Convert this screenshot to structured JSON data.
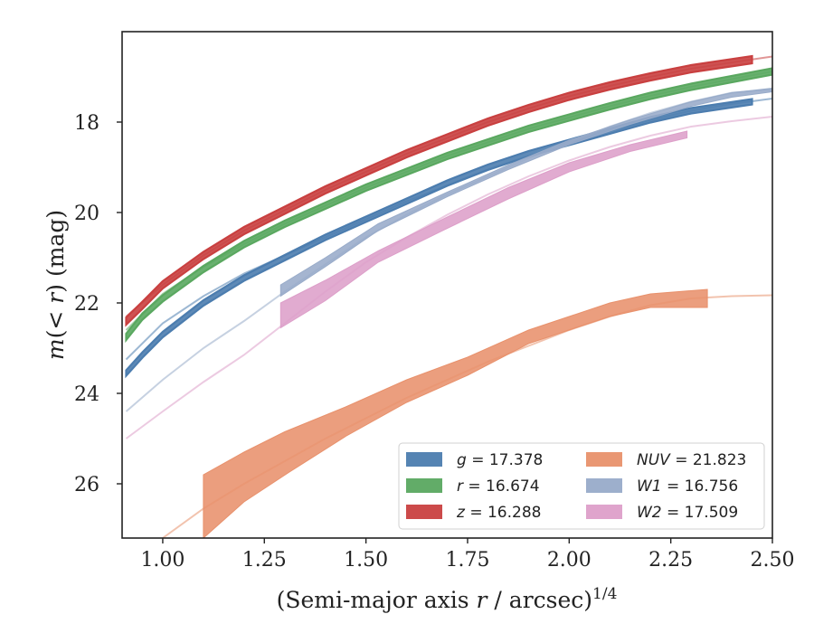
{
  "chart_data": {
    "type": "line",
    "xlabel": "(Semi-major axis r / arcsec)",
    "xlabel_parts": {
      "pre": "(Semi-major axis ",
      "var": "r",
      "post": " / arcsec)",
      "exp": "1/4"
    },
    "ylabel": "m(< r) (mag)",
    "ylabel_parts": {
      "var": "m",
      "mid": "(< ",
      "var2": "r",
      "post": ") (mag)"
    },
    "xlim": [
      0.9,
      2.5
    ],
    "ylim": [
      27.2,
      16.0
    ],
    "y_inverted": true,
    "xticks": [
      1.0,
      1.25,
      1.5,
      1.75,
      2.0,
      2.25,
      2.5
    ],
    "xtick_labels": [
      "1.00",
      "1.25",
      "1.50",
      "1.75",
      "2.00",
      "2.25",
      "2.50"
    ],
    "yticks": [
      18,
      20,
      22,
      24,
      26
    ],
    "ytick_labels": [
      "18",
      "20",
      "22",
      "24",
      "26"
    ],
    "grid": false,
    "legend_placement": "lower-right",
    "series": [
      {
        "name": "g = 17.378",
        "band": "g",
        "value": "17.378",
        "color": "#4c7daf",
        "fit": [
          [
            0.91,
            23.25
          ],
          [
            1.0,
            22.45
          ],
          [
            1.1,
            21.85
          ],
          [
            1.2,
            21.35
          ],
          [
            1.3,
            20.95
          ],
          [
            1.4,
            20.55
          ],
          [
            1.5,
            20.15
          ],
          [
            1.6,
            19.75
          ],
          [
            1.7,
            19.4
          ],
          [
            1.8,
            19.05
          ],
          [
            1.9,
            18.75
          ],
          [
            2.0,
            18.45
          ],
          [
            2.1,
            18.2
          ],
          [
            2.2,
            17.95
          ],
          [
            2.3,
            17.75
          ],
          [
            2.4,
            17.6
          ],
          [
            2.5,
            17.48
          ]
        ],
        "data": [
          [
            0.91,
            23.55
          ],
          [
            0.95,
            23.15
          ],
          [
            1.0,
            22.7
          ],
          [
            1.1,
            22.0
          ],
          [
            1.2,
            21.45
          ],
          [
            1.3,
            21.0
          ],
          [
            1.4,
            20.55
          ],
          [
            1.5,
            20.15
          ],
          [
            1.6,
            19.75
          ],
          [
            1.7,
            19.35
          ],
          [
            1.8,
            19.0
          ],
          [
            1.9,
            18.7
          ],
          [
            2.0,
            18.45
          ],
          [
            2.1,
            18.2
          ],
          [
            2.2,
            17.95
          ],
          [
            2.3,
            17.75
          ],
          [
            2.45,
            17.55
          ]
        ],
        "err": 0.06
      },
      {
        "name": "r = 16.674",
        "band": "r",
        "value": "16.674",
        "color": "#5aa860",
        "fit": [
          [
            0.91,
            22.6
          ],
          [
            1.0,
            21.8
          ],
          [
            1.1,
            21.2
          ],
          [
            1.2,
            20.7
          ],
          [
            1.3,
            20.25
          ],
          [
            1.4,
            19.85
          ],
          [
            1.5,
            19.45
          ],
          [
            1.6,
            19.1
          ],
          [
            1.7,
            18.75
          ],
          [
            1.8,
            18.45
          ],
          [
            1.9,
            18.15
          ],
          [
            2.0,
            17.9
          ],
          [
            2.1,
            17.65
          ],
          [
            2.2,
            17.42
          ],
          [
            2.3,
            17.22
          ],
          [
            2.4,
            17.05
          ],
          [
            2.5,
            16.88
          ]
        ],
        "data": [
          [
            0.91,
            22.75
          ],
          [
            0.95,
            22.3
          ],
          [
            1.0,
            21.9
          ],
          [
            1.1,
            21.25
          ],
          [
            1.2,
            20.7
          ],
          [
            1.3,
            20.25
          ],
          [
            1.4,
            19.85
          ],
          [
            1.5,
            19.45
          ],
          [
            1.6,
            19.1
          ],
          [
            1.7,
            18.75
          ],
          [
            1.8,
            18.45
          ],
          [
            1.9,
            18.15
          ],
          [
            2.0,
            17.9
          ],
          [
            2.1,
            17.65
          ],
          [
            2.2,
            17.42
          ],
          [
            2.3,
            17.22
          ],
          [
            2.5,
            16.88
          ]
        ],
        "err": 0.07
      },
      {
        "name": "z = 16.288",
        "band": "z",
        "value": "16.288",
        "color": "#c94040",
        "fit": [
          [
            0.91,
            22.3
          ],
          [
            1.0,
            21.6
          ],
          [
            1.1,
            20.95
          ],
          [
            1.2,
            20.4
          ],
          [
            1.3,
            19.95
          ],
          [
            1.4,
            19.5
          ],
          [
            1.5,
            19.1
          ],
          [
            1.6,
            18.7
          ],
          [
            1.7,
            18.35
          ],
          [
            1.8,
            18.0
          ],
          [
            1.9,
            17.7
          ],
          [
            2.0,
            17.43
          ],
          [
            2.1,
            17.2
          ],
          [
            2.2,
            17.0
          ],
          [
            2.3,
            16.82
          ],
          [
            2.4,
            16.68
          ],
          [
            2.5,
            16.55
          ]
        ],
        "data": [
          [
            0.91,
            22.4
          ],
          [
            0.95,
            22.05
          ],
          [
            1.0,
            21.6
          ],
          [
            1.1,
            20.95
          ],
          [
            1.2,
            20.4
          ],
          [
            1.3,
            19.95
          ],
          [
            1.4,
            19.5
          ],
          [
            1.5,
            19.1
          ],
          [
            1.6,
            18.7
          ],
          [
            1.7,
            18.35
          ],
          [
            1.8,
            18.0
          ],
          [
            1.9,
            17.7
          ],
          [
            2.0,
            17.43
          ],
          [
            2.1,
            17.2
          ],
          [
            2.2,
            17.0
          ],
          [
            2.3,
            16.82
          ],
          [
            2.45,
            16.62
          ]
        ],
        "err": 0.08
      },
      {
        "name": "NUV = 21.823",
        "band": "NUV",
        "value": "21.823",
        "color": "#e8916c",
        "fit": [
          [
            1.0,
            27.2
          ],
          [
            1.1,
            26.55
          ],
          [
            1.2,
            26.0
          ],
          [
            1.3,
            25.5
          ],
          [
            1.4,
            25.0
          ],
          [
            1.5,
            24.55
          ],
          [
            1.6,
            24.1
          ],
          [
            1.7,
            23.7
          ],
          [
            1.8,
            23.3
          ],
          [
            1.9,
            22.95
          ],
          [
            2.0,
            22.6
          ],
          [
            2.1,
            22.3
          ],
          [
            2.2,
            22.05
          ],
          [
            2.3,
            21.9
          ],
          [
            2.4,
            21.85
          ],
          [
            2.5,
            21.83
          ]
        ],
        "band_upper": [
          [
            1.1,
            25.8
          ],
          [
            1.2,
            25.3
          ],
          [
            1.3,
            24.85
          ],
          [
            1.45,
            24.3
          ],
          [
            1.6,
            23.7
          ],
          [
            1.75,
            23.2
          ],
          [
            1.9,
            22.6
          ],
          [
            2.0,
            22.3
          ],
          [
            2.1,
            22.0
          ],
          [
            2.2,
            21.8
          ],
          [
            2.34,
            21.7
          ]
        ],
        "band_lower": [
          [
            1.1,
            27.2
          ],
          [
            1.2,
            26.4
          ],
          [
            1.31,
            25.75
          ],
          [
            1.45,
            24.95
          ],
          [
            1.6,
            24.2
          ],
          [
            1.75,
            23.6
          ],
          [
            1.9,
            22.9
          ],
          [
            2.0,
            22.6
          ],
          [
            2.1,
            22.3
          ],
          [
            2.2,
            22.1
          ],
          [
            2.34,
            22.1
          ]
        ]
      },
      {
        "name": "W1 = 16.756",
        "band": "W1",
        "value": "16.756",
        "color": "#98abc9",
        "fit": [
          [
            0.91,
            24.4
          ],
          [
            1.0,
            23.7
          ],
          [
            1.1,
            23.0
          ],
          [
            1.2,
            22.4
          ],
          [
            1.3,
            21.75
          ],
          [
            1.4,
            21.15
          ],
          [
            1.5,
            20.55
          ],
          [
            1.6,
            20.05
          ],
          [
            1.7,
            19.6
          ],
          [
            1.8,
            19.2
          ],
          [
            1.9,
            18.8
          ],
          [
            2.0,
            18.45
          ],
          [
            2.1,
            18.1
          ],
          [
            2.2,
            17.8
          ],
          [
            2.3,
            17.55
          ],
          [
            2.4,
            17.35
          ],
          [
            2.5,
            17.28
          ]
        ],
        "band_upper": [
          [
            1.29,
            21.6
          ],
          [
            1.4,
            21.0
          ],
          [
            1.53,
            20.25
          ],
          [
            1.7,
            19.55
          ],
          [
            1.85,
            18.95
          ],
          [
            2.0,
            18.4
          ],
          [
            2.15,
            17.95
          ],
          [
            2.3,
            17.55
          ],
          [
            2.4,
            17.35
          ],
          [
            2.5,
            17.25
          ]
        ],
        "band_lower": [
          [
            1.29,
            21.85
          ],
          [
            1.4,
            21.2
          ],
          [
            1.53,
            20.4
          ],
          [
            1.7,
            19.65
          ],
          [
            1.85,
            19.05
          ],
          [
            2.0,
            18.5
          ],
          [
            2.15,
            18.05
          ],
          [
            2.3,
            17.65
          ],
          [
            2.4,
            17.45
          ],
          [
            2.5,
            17.33
          ]
        ]
      },
      {
        "name": "W2 = 17.509",
        "band": "W2",
        "value": "17.509",
        "color": "#dd9fc9",
        "fit": [
          [
            0.91,
            25.0
          ],
          [
            1.0,
            24.4
          ],
          [
            1.1,
            23.75
          ],
          [
            1.2,
            23.15
          ],
          [
            1.3,
            22.45
          ],
          [
            1.4,
            21.75
          ],
          [
            1.5,
            21.1
          ],
          [
            1.6,
            20.55
          ],
          [
            1.7,
            20.05
          ],
          [
            1.8,
            19.6
          ],
          [
            1.9,
            19.2
          ],
          [
            2.0,
            18.85
          ],
          [
            2.1,
            18.55
          ],
          [
            2.2,
            18.3
          ],
          [
            2.3,
            18.1
          ],
          [
            2.4,
            17.98
          ],
          [
            2.5,
            17.88
          ]
        ],
        "band_upper": [
          [
            1.29,
            22.0
          ],
          [
            1.4,
            21.5
          ],
          [
            1.53,
            20.85
          ],
          [
            1.7,
            20.1
          ],
          [
            1.85,
            19.45
          ],
          [
            2.0,
            18.9
          ],
          [
            2.15,
            18.5
          ],
          [
            2.29,
            18.2
          ]
        ],
        "band_lower": [
          [
            1.29,
            22.55
          ],
          [
            1.4,
            21.95
          ],
          [
            1.53,
            21.1
          ],
          [
            1.7,
            20.35
          ],
          [
            1.85,
            19.7
          ],
          [
            2.0,
            19.1
          ],
          [
            2.15,
            18.65
          ],
          [
            2.29,
            18.35
          ]
        ]
      }
    ],
    "legend": {
      "left": [
        {
          "pre": "",
          "var": "g",
          "post": " = 17.378",
          "color": "#4c7daf"
        },
        {
          "pre": "",
          "var": "r",
          "post": " = 16.674",
          "color": "#5aa860"
        },
        {
          "pre": "",
          "var": "z",
          "post": " = 16.288",
          "color": "#c94040"
        }
      ],
      "right": [
        {
          "pre": "",
          "var": "NUV",
          "post": " = 21.823",
          "color": "#e8916c"
        },
        {
          "pre": "",
          "var": "W1",
          "post": " = 16.756",
          "color": "#98abc9"
        },
        {
          "pre": "",
          "var": "W2",
          "post": " = 17.509",
          "color": "#dd9fc9"
        }
      ]
    }
  }
}
